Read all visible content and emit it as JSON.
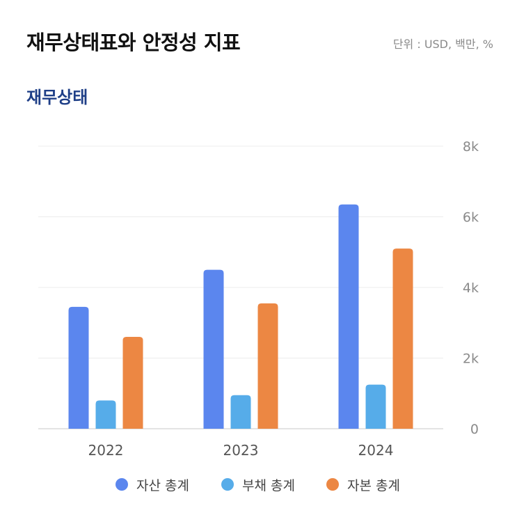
{
  "header": {
    "title": "재무상태표와 안정성 지표",
    "unit_note": "단위 : USD, 백만, %"
  },
  "section": {
    "title": "재무상태"
  },
  "chart_data": {
    "type": "bar",
    "categories": [
      "2022",
      "2023",
      "2024"
    ],
    "series": [
      {
        "name": "자산 총계",
        "color": "#5b86ee",
        "values": [
          3450,
          4500,
          6350
        ]
      },
      {
        "name": "부채 총계",
        "color": "#56ace9",
        "values": [
          800,
          950,
          1250
        ]
      },
      {
        "name": "자본 총계",
        "color": "#ec8743",
        "values": [
          2600,
          3550,
          5100
        ]
      }
    ],
    "y_ticks": [
      {
        "value": 0,
        "label": "0"
      },
      {
        "value": 2000,
        "label": "2k"
      },
      {
        "value": 4000,
        "label": "4k"
      },
      {
        "value": 6000,
        "label": "6k"
      },
      {
        "value": 8000,
        "label": "8k"
      }
    ],
    "ylim": [
      0,
      8000
    ],
    "y_axis_side": "right",
    "grid": true,
    "legend_position": "bottom"
  }
}
